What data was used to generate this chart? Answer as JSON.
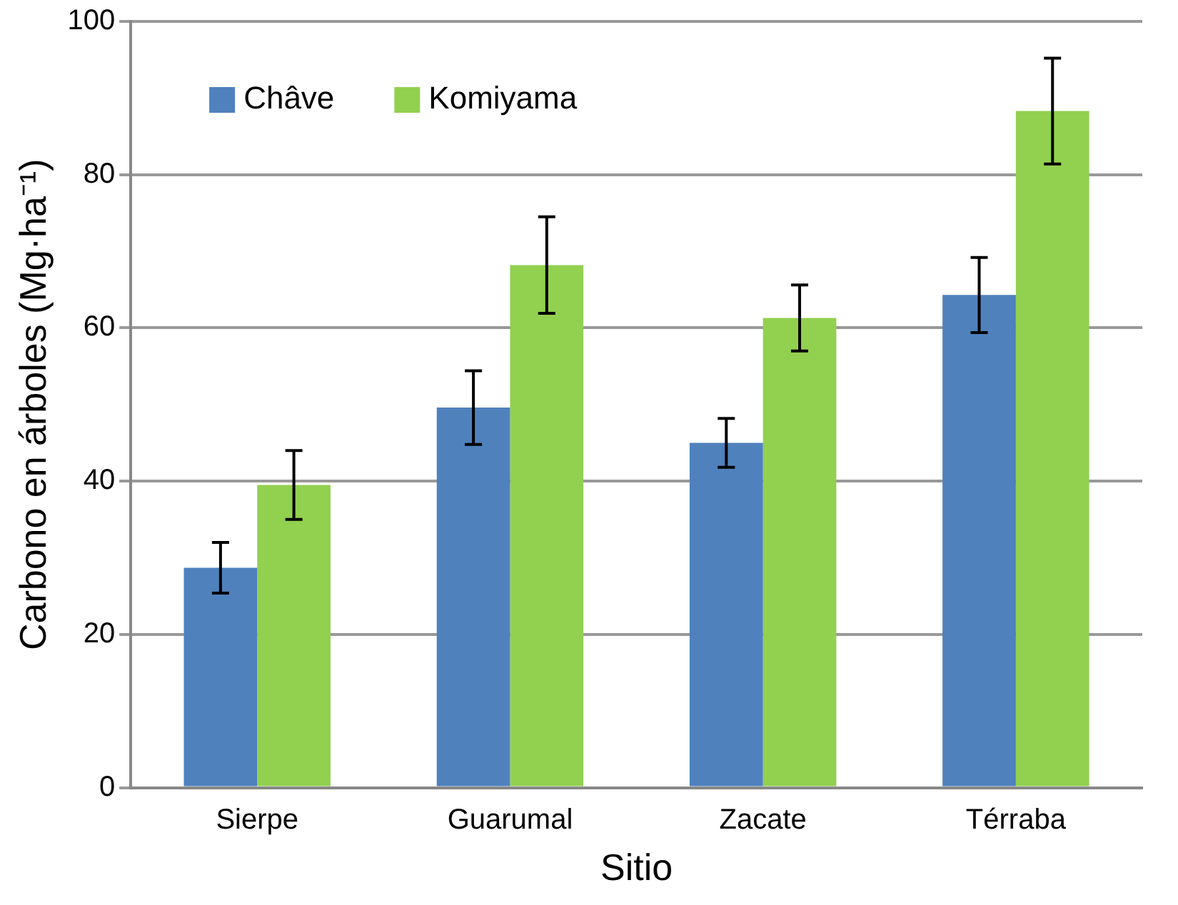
{
  "chart_data": {
    "type": "bar",
    "xlabel": "Sitio",
    "ylabel": "Carbono en árboles (Mg·ha⁻¹)",
    "categories": [
      "Sierpe",
      "Guarumal",
      "Zacate",
      "Térraba"
    ],
    "series": [
      {
        "name": "Châve",
        "color": "#4f81bd",
        "values": [
          28.7,
          49.6,
          45,
          64.3
        ],
        "errors": [
          3.3,
          4.8,
          3.2,
          4.9
        ]
      },
      {
        "name": "Komiyama",
        "color": "#92d050",
        "values": [
          39.5,
          68.2,
          61.3,
          88.3
        ],
        "errors": [
          4.5,
          6.3,
          4.3,
          6.9
        ]
      }
    ],
    "ylim": [
      0,
      100
    ],
    "yticks": [
      0,
      20,
      40,
      60,
      80,
      100
    ],
    "grid": "y",
    "legend": "top left"
  }
}
